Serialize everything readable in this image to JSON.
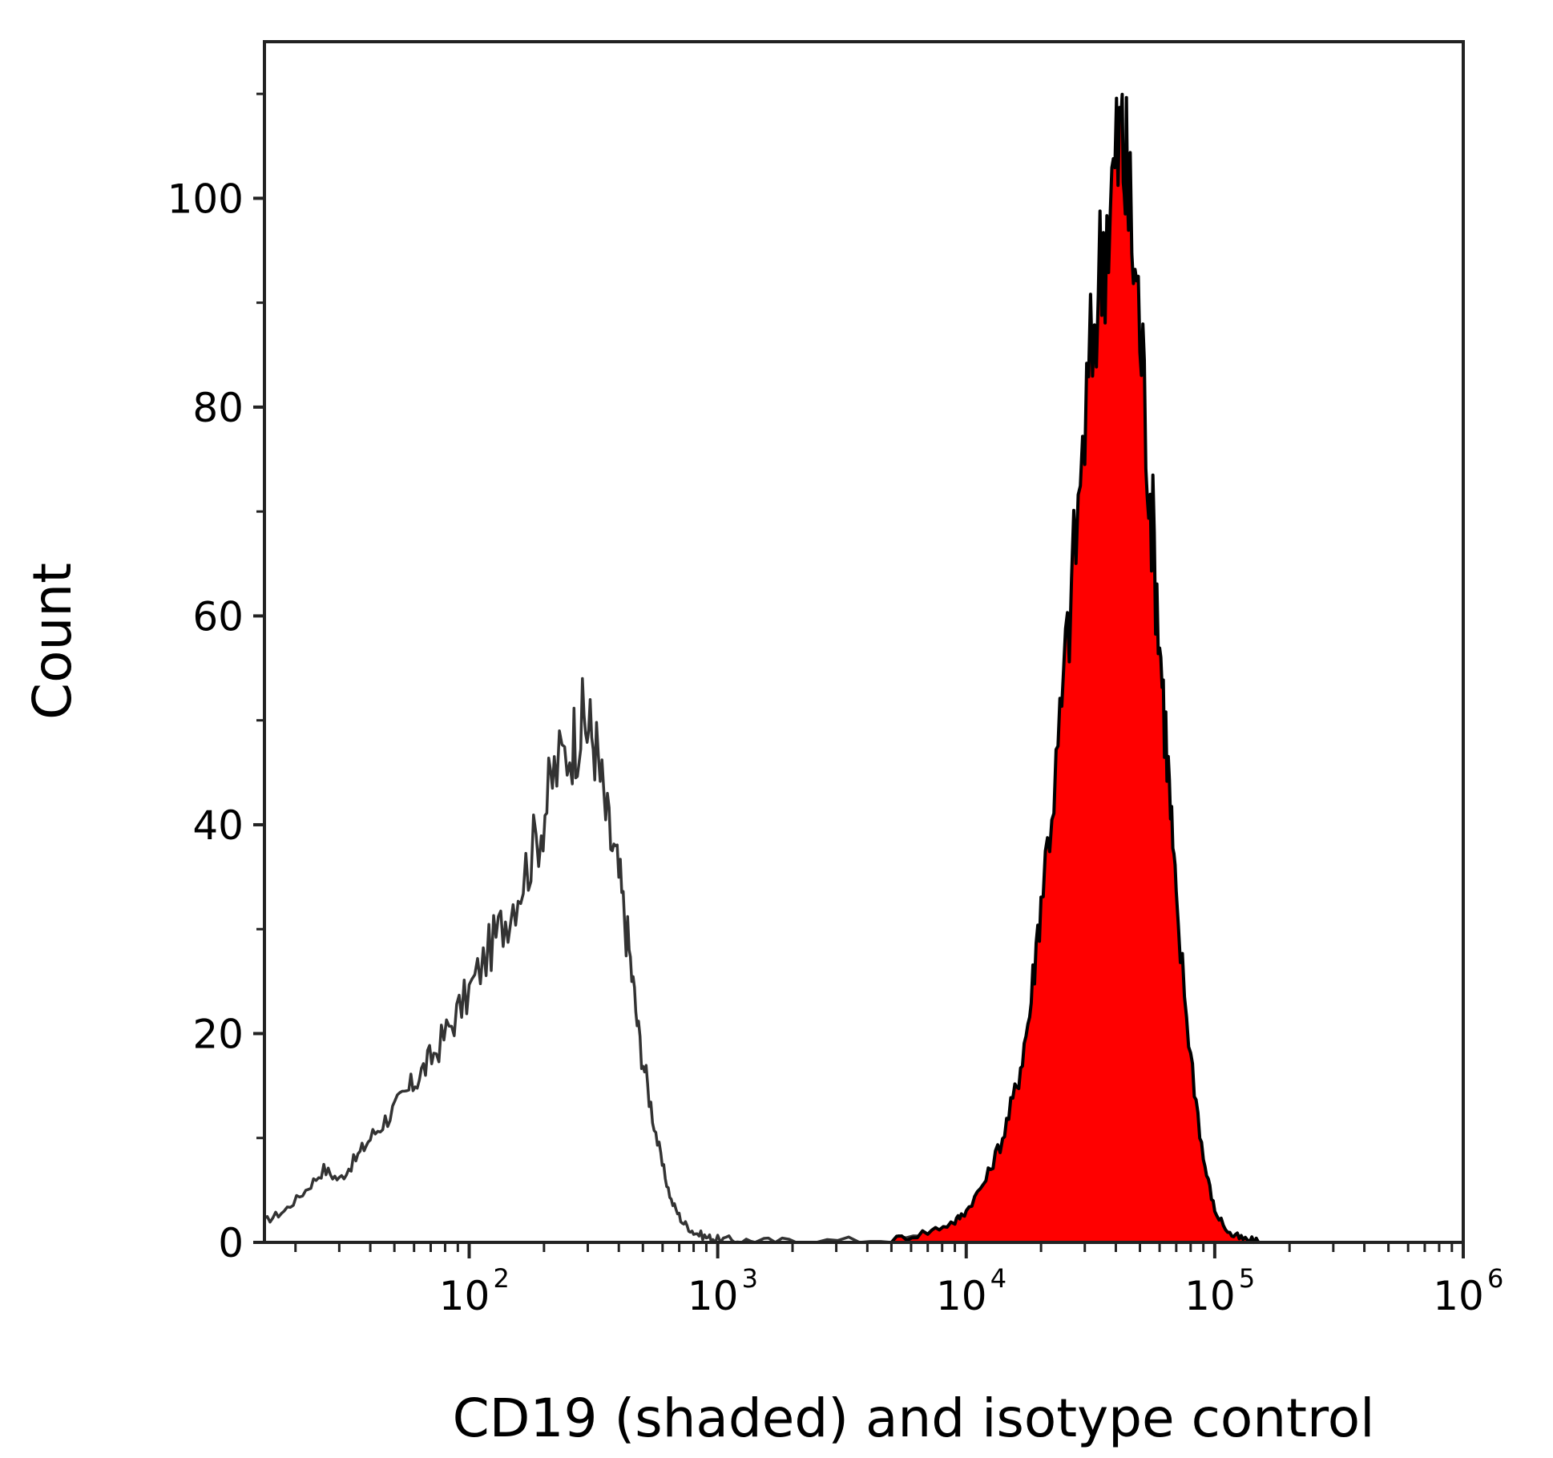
{
  "chart_data": {
    "type": "area",
    "title": "",
    "xlabel": "CD19 (shaded) and isotype control",
    "ylabel": "Count",
    "x_scale": "log",
    "xlim": [
      15,
      1000000
    ],
    "ylim": [
      0,
      115
    ],
    "grid": false,
    "legend": "none",
    "x_ticks": [
      {
        "value": 100,
        "base": "10",
        "exp": "2"
      },
      {
        "value": 1000,
        "base": "10",
        "exp": "3"
      },
      {
        "value": 10000,
        "base": "10",
        "exp": "4"
      },
      {
        "value": 100000,
        "base": "10",
        "exp": "5"
      },
      {
        "value": 1000000,
        "base": "10",
        "exp": "6"
      }
    ],
    "y_ticks": [
      0,
      20,
      40,
      60,
      80,
      100
    ],
    "series": [
      {
        "style": "outline",
        "color": "#333333",
        "x": [
          15,
          18,
          22,
          26,
          30,
          35,
          40,
          47,
          55,
          63,
          72,
          85,
          100,
          120,
          140,
          165,
          195,
          220,
          260,
          290,
          320,
          360,
          400,
          440,
          480,
          530,
          590,
          650,
          720,
          800,
          900,
          1000,
          1200,
          1600,
          2500,
          5000,
          8000,
          10000
        ],
        "values": [
          2,
          3,
          5,
          7,
          6,
          8,
          10,
          12,
          14,
          16,
          18,
          21,
          24,
          28,
          31,
          35,
          40,
          45,
          48,
          50,
          48,
          40,
          35,
          28,
          20,
          14,
          8,
          4,
          2,
          1,
          0.5,
          0.3,
          0.2,
          0.1,
          0.1,
          0.3,
          0.6,
          1
        ]
      },
      {
        "style": "filled",
        "color": "#ff0000",
        "stroke": "#000000",
        "x": [
          5000,
          7000,
          9000,
          10000,
          12000,
          14000,
          16000,
          18000,
          20000,
          23000,
          26000,
          30000,
          34000,
          38000,
          42000,
          45000,
          50000,
          55000,
          60000,
          65000,
          70000,
          80000,
          90000,
          100000,
          115000,
          130000,
          150000
        ],
        "values": [
          0.2,
          1,
          2,
          3,
          6,
          10,
          15,
          22,
          33,
          45,
          60,
          78,
          92,
          100,
          106,
          100,
          88,
          72,
          58,
          45,
          32,
          18,
          8,
          3,
          0.8,
          0.3,
          0
        ]
      }
    ]
  }
}
